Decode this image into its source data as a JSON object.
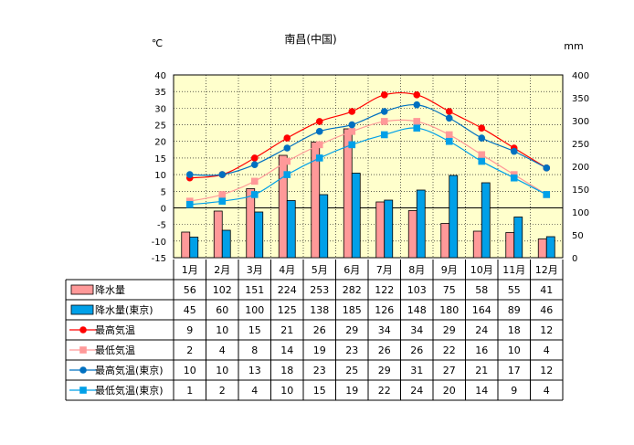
{
  "chart_data": {
    "type": "bar",
    "title": "南昌(中国)",
    "ylabel_left": "℃",
    "ylabel_right": "mm",
    "ylim_left": [
      -15,
      40
    ],
    "ylim_right": [
      0,
      400
    ],
    "left_ticks": [
      "40",
      "35",
      "30",
      "25",
      "20",
      "15",
      "10",
      "5",
      "0",
      "-5",
      "-10",
      "-15"
    ],
    "right_ticks": [
      "400",
      "350",
      "300",
      "250",
      "200",
      "150",
      "100",
      "50",
      "0"
    ],
    "categories": [
      "1月",
      "2月",
      "3月",
      "4月",
      "5月",
      "6月",
      "7月",
      "8月",
      "9月",
      "10月",
      "11月",
      "12月"
    ],
    "legend_position": "table-below",
    "grid": true,
    "plot_bg": "#FFFFCC",
    "series": [
      {
        "name": "降水量",
        "kind": "bar",
        "axis": "right",
        "color": "#FF9999",
        "values": [
          56,
          102,
          151,
          224,
          253,
          282,
          122,
          103,
          75,
          58,
          55,
          41
        ]
      },
      {
        "name": "降水量(東京)",
        "kind": "bar",
        "axis": "right",
        "color": "#00A0E8",
        "values": [
          45,
          60,
          100,
          125,
          138,
          185,
          126,
          148,
          180,
          164,
          89,
          46
        ]
      },
      {
        "name": "最高気温",
        "kind": "line",
        "marker": "circle",
        "axis": "left",
        "color": "#FF0000",
        "values": [
          9,
          10,
          15,
          21,
          26,
          29,
          34,
          34,
          29,
          24,
          18,
          12
        ]
      },
      {
        "name": "最低気温",
        "kind": "line",
        "marker": "square",
        "axis": "left",
        "color": "#FF9999",
        "values": [
          2,
          4,
          8,
          14,
          19,
          23,
          26,
          26,
          22,
          16,
          10,
          4
        ]
      },
      {
        "name": "最高気温(東京)",
        "kind": "line",
        "marker": "circle",
        "axis": "left",
        "color": "#0070C0",
        "values": [
          10,
          10,
          13,
          18,
          23,
          25,
          29,
          31,
          27,
          21,
          17,
          12
        ]
      },
      {
        "name": "最低気温(東京)",
        "kind": "line",
        "marker": "square",
        "axis": "left",
        "color": "#00A0E8",
        "values": [
          1,
          2,
          4,
          10,
          15,
          19,
          22,
          24,
          20,
          14,
          9,
          4
        ]
      }
    ]
  }
}
